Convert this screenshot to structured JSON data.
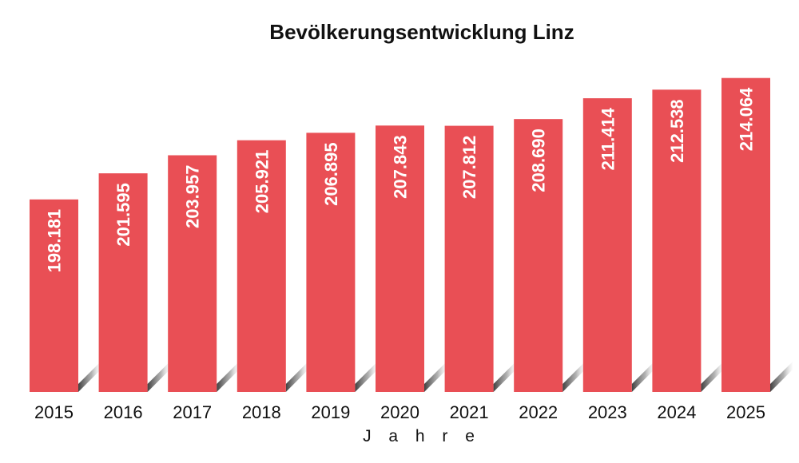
{
  "chart_data": {
    "type": "bar",
    "title": "Bevölkerungsentwicklung Linz",
    "xlabel": "J a h r e",
    "ylabel": "",
    "categories": [
      "2015",
      "2016",
      "2017",
      "2018",
      "2019",
      "2020",
      "2021",
      "2022",
      "2023",
      "2024",
      "2025"
    ],
    "values": [
      198181,
      201595,
      203957,
      205921,
      206895,
      207843,
      207812,
      208690,
      211414,
      212538,
      214064
    ],
    "value_labels": [
      "198.181",
      "201.595",
      "203.957",
      "205.921",
      "206.895",
      "207.843",
      "207.812",
      "208.690",
      "211.414",
      "212.538",
      "214.064"
    ],
    "ylim": [
      173000,
      218000
    ],
    "grid": false,
    "legend": "none",
    "colors": {
      "bar": "#e94f55",
      "text": "#111111",
      "label": "#ffffff"
    }
  }
}
